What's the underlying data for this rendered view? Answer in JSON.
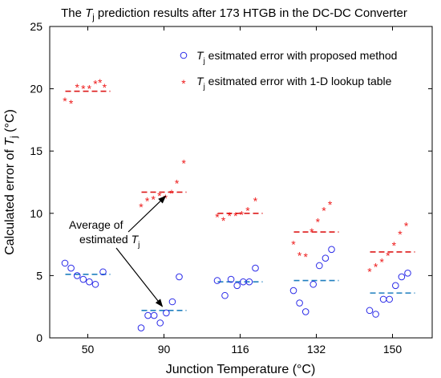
{
  "chart_data": {
    "type": "scatter",
    "title": {
      "pre": "The ",
      "var": "T",
      "sub": "j",
      "post": " prediction results after 173 HTGB in the DC-DC Converter"
    },
    "xlabel": "Junction Temperature (°C)",
    "ylabel": {
      "pre": "Calculated error of ",
      "var": "T",
      "sub": "j",
      "post": " (°C)"
    },
    "categories": [
      "50",
      "90",
      "116",
      "132",
      "150"
    ],
    "ylim": [
      0,
      25
    ],
    "yticks": [
      0,
      5,
      10,
      15,
      20,
      25
    ],
    "grid": false,
    "legend_position": "top-right",
    "series": [
      {
        "name": {
          "var": "T",
          "sub": "j",
          "text": " esitmated error with proposed method"
        },
        "marker": "circle",
        "color": "#2a2ae8",
        "points": [
          [
            [
              -0.3,
              6.0
            ],
            [
              -0.22,
              5.6
            ],
            [
              -0.14,
              5.0
            ],
            [
              -0.06,
              4.7
            ],
            [
              0.02,
              4.5
            ],
            [
              0.1,
              4.3
            ],
            [
              0.2,
              5.3
            ]
          ],
          [
            [
              -0.3,
              0.8
            ],
            [
              -0.21,
              1.8
            ],
            [
              -0.13,
              1.8
            ],
            [
              -0.05,
              1.2
            ],
            [
              0.03,
              2.0
            ],
            [
              0.11,
              2.9
            ],
            [
              0.2,
              4.9
            ]
          ],
          [
            [
              -0.3,
              4.6
            ],
            [
              -0.2,
              3.4
            ],
            [
              -0.12,
              4.7
            ],
            [
              -0.04,
              4.2
            ],
            [
              0.04,
              4.5
            ],
            [
              0.12,
              4.5
            ],
            [
              0.2,
              5.6
            ]
          ],
          [
            [
              -0.3,
              3.8
            ],
            [
              -0.22,
              2.8
            ],
            [
              -0.14,
              2.1
            ],
            [
              -0.04,
              4.3
            ],
            [
              0.04,
              5.8
            ],
            [
              0.12,
              6.4
            ],
            [
              0.2,
              7.1
            ]
          ],
          [
            [
              -0.3,
              2.2
            ],
            [
              -0.22,
              1.9
            ],
            [
              -0.12,
              3.1
            ],
            [
              -0.04,
              3.1
            ],
            [
              0.04,
              4.2
            ],
            [
              0.12,
              4.9
            ],
            [
              0.2,
              5.2
            ]
          ]
        ],
        "averages": [
          5.1,
          2.2,
          4.5,
          4.6,
          3.6
        ],
        "average_color": "#1f7fbf"
      },
      {
        "name": {
          "var": "T",
          "sub": "j",
          "text": " esitmated error with 1-D lookup table"
        },
        "marker": "star",
        "color": "#ee1c1c",
        "points": [
          [
            [
              -0.3,
              19.0
            ],
            [
              -0.22,
              18.8
            ],
            [
              -0.14,
              20.1
            ],
            [
              -0.06,
              20.0
            ],
            [
              0.02,
              20.0
            ],
            [
              0.1,
              20.4
            ],
            [
              0.16,
              20.5
            ],
            [
              0.22,
              20.1
            ]
          ],
          [
            [
              -0.3,
              10.5
            ],
            [
              -0.22,
              11.0
            ],
            [
              -0.14,
              11.1
            ],
            [
              -0.06,
              11.4
            ],
            [
              0.02,
              11.2
            ],
            [
              0.1,
              11.6
            ],
            [
              0.17,
              12.4
            ],
            [
              0.26,
              14.0
            ]
          ],
          [
            [
              -0.3,
              9.7
            ],
            [
              -0.22,
              9.4
            ],
            [
              -0.14,
              9.8
            ],
            [
              -0.06,
              9.8
            ],
            [
              0.02,
              9.9
            ],
            [
              0.1,
              10.2
            ],
            [
              0.2,
              11.0
            ]
          ],
          [
            [
              -0.3,
              7.5
            ],
            [
              -0.22,
              6.6
            ],
            [
              -0.14,
              6.5
            ],
            [
              -0.06,
              8.5
            ],
            [
              0.02,
              9.3
            ],
            [
              0.1,
              10.2
            ],
            [
              0.18,
              10.7
            ]
          ],
          [
            [
              -0.3,
              5.3
            ],
            [
              -0.22,
              5.7
            ],
            [
              -0.14,
              6.1
            ],
            [
              -0.06,
              6.6
            ],
            [
              0.02,
              7.4
            ],
            [
              0.1,
              8.3
            ],
            [
              0.18,
              9.0
            ]
          ]
        ],
        "averages": [
          19.8,
          11.7,
          10.0,
          8.5,
          6.9
        ],
        "average_color": "#dd1a1a"
      }
    ],
    "annotation": {
      "line1": "Average of",
      "line2_pre": "estimated ",
      "line2_var": "T",
      "line2_sub": "j",
      "arrow_targets": [
        [
          1.0,
          11.7
        ],
        [
          1.0,
          2.2
        ]
      ]
    }
  }
}
